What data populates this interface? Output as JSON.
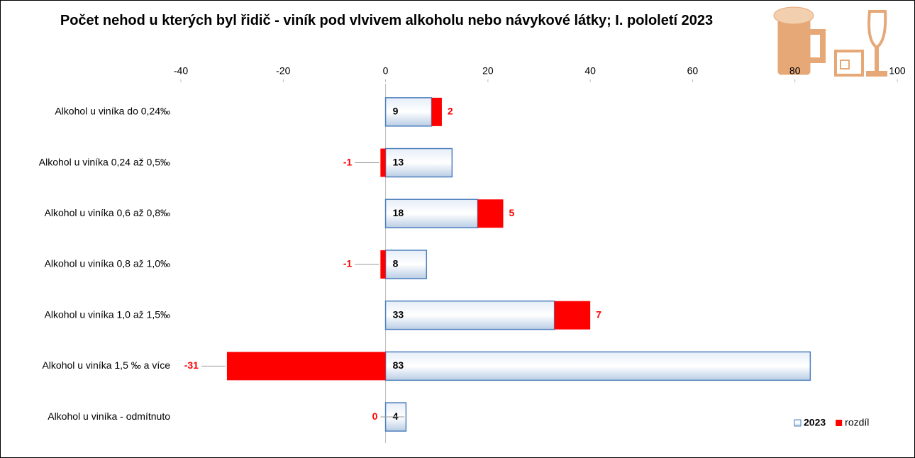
{
  "chart_data": {
    "type": "bar",
    "orientation": "horizontal",
    "stacked": true,
    "title": "Počet nehod u kterých byl řidič - viník pod vlvivem alkoholu nebo návykové látky; I. pololetí 2023",
    "categories": [
      "Alkohol u viníka do 0,24‰",
      "Alkohol u viníka  0,24 až 0,5‰",
      "Alkohol u viníka  0,6 až 0,8‰",
      "Alkohol u viníka  0,8 až 1,0‰",
      "Alkohol u viníka 1,0 až 1,5‰",
      "Alkohol u viníka 1,5 ‰ a více",
      "Alkohol u viníka - odmítnuto"
    ],
    "series": [
      {
        "name": "2023",
        "color": "#4f81bd",
        "values": [
          9,
          13,
          18,
          8,
          33,
          83,
          4
        ]
      },
      {
        "name": "rozdíl",
        "color": "#ff0000",
        "values": [
          2,
          -1,
          5,
          -1,
          7,
          -31,
          0
        ]
      }
    ],
    "xlim": [
      -40,
      100
    ],
    "xticks": [
      -40,
      -20,
      0,
      20,
      40,
      60,
      80,
      100
    ],
    "legend": "bottom-right"
  }
}
